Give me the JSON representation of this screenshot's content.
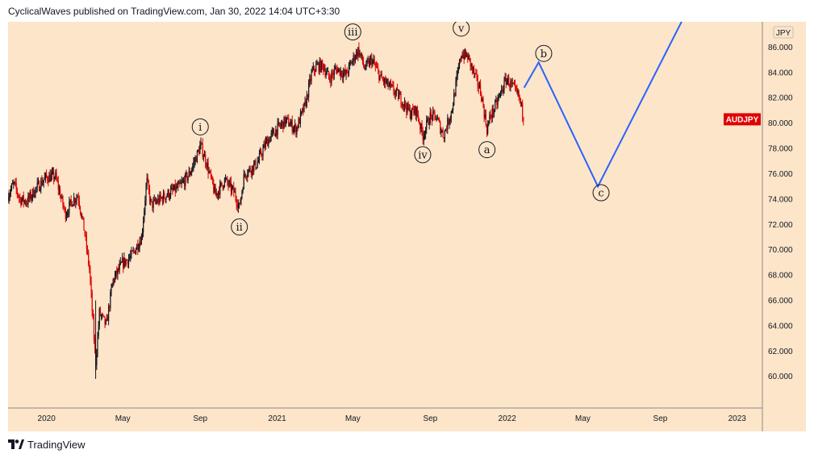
{
  "header": {
    "publisher_line": "CyclicalWaves published on TradingView.com, Jan 30, 2022 14:04 UTC+3:30"
  },
  "footer": {
    "brand": "TradingView",
    "logo_icon": "tradingview-logo-icon"
  },
  "colors": {
    "background": "#fce5c9",
    "candle_up": "#131722",
    "candle_down": "#e00000",
    "projection": "#2962ff",
    "price_label": "#e00000"
  },
  "chart_data": {
    "type": "line",
    "title": "",
    "symbol_label": "AUDJPY",
    "currency_label": "JPY",
    "last_price": 80.3,
    "xlim": [
      "2019-11-01",
      "2023-02-10"
    ],
    "ylim": [
      57.5,
      88.0
    ],
    "grid": false,
    "y_ticks": [
      "86.000",
      "84.000",
      "82.000",
      "80.000",
      "78.000",
      "76.000",
      "74.000",
      "72.000",
      "70.000",
      "68.000",
      "66.000",
      "64.000",
      "62.000",
      "60.000"
    ],
    "x_ticks": [
      {
        "label": "2020",
        "date": "2020-01-01"
      },
      {
        "label": "May",
        "date": "2020-05-01"
      },
      {
        "label": "Sep",
        "date": "2020-09-01"
      },
      {
        "label": "2021",
        "date": "2021-01-01"
      },
      {
        "label": "May",
        "date": "2021-05-01"
      },
      {
        "label": "Sep",
        "date": "2021-09-01"
      },
      {
        "label": "2022",
        "date": "2022-01-01"
      },
      {
        "label": "May",
        "date": "2022-05-01"
      },
      {
        "label": "Sep",
        "date": "2022-09-01"
      },
      {
        "label": "2023",
        "date": "2023-01-01"
      }
    ],
    "series": [
      {
        "points": [
          [
            "2019-11-01",
            74.3
          ],
          [
            "2019-11-10",
            75.2
          ],
          [
            "2019-11-20",
            74.0
          ],
          [
            "2019-12-01",
            73.8
          ],
          [
            "2019-12-15",
            74.8
          ],
          [
            "2019-12-31",
            75.7
          ],
          [
            "2020-01-15",
            75.8
          ],
          [
            "2020-01-31",
            72.8
          ],
          [
            "2020-02-10",
            73.8
          ],
          [
            "2020-02-20",
            74.3
          ],
          [
            "2020-03-01",
            71.5
          ],
          [
            "2020-03-09",
            68.5
          ],
          [
            "2020-03-19",
            61.0
          ],
          [
            "2020-03-25",
            65.0
          ],
          [
            "2020-04-05",
            64.0
          ],
          [
            "2020-04-15",
            67.5
          ],
          [
            "2020-04-30",
            68.9
          ],
          [
            "2020-05-15",
            69.5
          ],
          [
            "2020-05-31",
            71.0
          ],
          [
            "2020-06-08",
            75.5
          ],
          [
            "2020-06-15",
            73.5
          ],
          [
            "2020-06-30",
            74.0
          ],
          [
            "2020-07-15",
            74.5
          ],
          [
            "2020-07-31",
            75.0
          ],
          [
            "2020-08-15",
            76.0
          ],
          [
            "2020-08-31",
            78.0
          ],
          [
            "2020-09-01",
            78.3
          ],
          [
            "2020-09-10",
            77.0
          ],
          [
            "2020-09-25",
            74.3
          ],
          [
            "2020-10-10",
            75.5
          ],
          [
            "2020-10-25",
            74.5
          ],
          [
            "2020-11-02",
            73.3
          ],
          [
            "2020-11-10",
            76.0
          ],
          [
            "2020-11-30",
            76.8
          ],
          [
            "2020-12-15",
            78.5
          ],
          [
            "2020-12-31",
            79.5
          ],
          [
            "2021-01-15",
            80.2
          ],
          [
            "2021-01-31",
            79.5
          ],
          [
            "2021-02-15",
            81.5
          ],
          [
            "2021-02-25",
            84.0
          ],
          [
            "2021-03-05",
            84.5
          ],
          [
            "2021-03-15",
            84.5
          ],
          [
            "2021-03-25",
            83.5
          ],
          [
            "2021-04-05",
            84.3
          ],
          [
            "2021-04-20",
            83.8
          ],
          [
            "2021-05-01",
            85.0
          ],
          [
            "2021-05-10",
            85.8
          ],
          [
            "2021-05-20",
            84.3
          ],
          [
            "2021-05-31",
            85.0
          ],
          [
            "2021-06-15",
            83.5
          ],
          [
            "2021-06-30",
            82.8
          ],
          [
            "2021-07-15",
            82.0
          ],
          [
            "2021-07-31",
            80.8
          ],
          [
            "2021-08-10",
            81.0
          ],
          [
            "2021-08-20",
            79.0
          ],
          [
            "2021-08-31",
            80.5
          ],
          [
            "2021-09-10",
            80.5
          ],
          [
            "2021-09-22",
            79.0
          ],
          [
            "2021-10-05",
            81.0
          ],
          [
            "2021-10-15",
            84.0
          ],
          [
            "2021-10-20",
            85.5
          ],
          [
            "2021-10-31",
            85.2
          ],
          [
            "2021-11-10",
            83.8
          ],
          [
            "2021-11-20",
            82.5
          ],
          [
            "2021-11-30",
            79.5
          ],
          [
            "2021-12-05",
            80.5
          ],
          [
            "2021-12-15",
            81.5
          ],
          [
            "2021-12-25",
            82.8
          ],
          [
            "2021-12-31",
            83.5
          ],
          [
            "2022-01-10",
            82.8
          ],
          [
            "2022-01-20",
            82.0
          ],
          [
            "2022-01-28",
            80.3
          ]
        ]
      },
      {
        "points": [
          [
            "2022-01-28",
            82.8
          ],
          [
            "2022-02-20",
            84.8
          ],
          [
            "2022-05-25",
            75.0
          ],
          [
            "2022-10-15",
            89.0
          ]
        ]
      }
    ],
    "annotations": [
      {
        "text": "i",
        "x": "2020-09-01",
        "y": 79.7
      },
      {
        "text": "ii",
        "x": "2020-11-02",
        "y": 71.8
      },
      {
        "text": "iii",
        "x": "2021-05-01",
        "y": 87.2
      },
      {
        "text": "iv",
        "x": "2021-08-20",
        "y": 77.5
      },
      {
        "text": "v",
        "x": "2021-10-20",
        "y": 87.5
      },
      {
        "text": "a",
        "x": "2021-11-30",
        "y": 77.9
      },
      {
        "text": "b",
        "x": "2022-02-28",
        "y": 85.5
      },
      {
        "text": "c",
        "x": "2022-05-30",
        "y": 74.5
      }
    ]
  }
}
